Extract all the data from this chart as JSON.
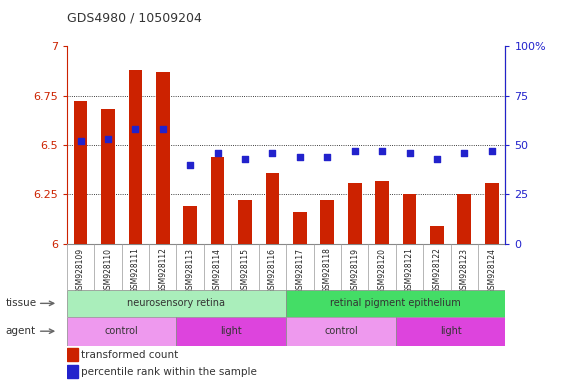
{
  "title": "GDS4980 / 10509204",
  "samples": [
    "GSM928109",
    "GSM928110",
    "GSM928111",
    "GSM928112",
    "GSM928113",
    "GSM928114",
    "GSM928115",
    "GSM928116",
    "GSM928117",
    "GSM928118",
    "GSM928119",
    "GSM928120",
    "GSM928121",
    "GSM928122",
    "GSM928123",
    "GSM928124"
  ],
  "bar_values": [
    6.72,
    6.68,
    6.88,
    6.87,
    6.19,
    6.44,
    6.22,
    6.36,
    6.16,
    6.22,
    6.31,
    6.32,
    6.25,
    6.09,
    6.25,
    6.31
  ],
  "dot_values": [
    52,
    53,
    58,
    58,
    40,
    46,
    43,
    46,
    44,
    44,
    47,
    47,
    46,
    43,
    46,
    47
  ],
  "ylim": [
    6.0,
    7.0
  ],
  "y2lim": [
    0,
    100
  ],
  "yticks": [
    6.0,
    6.25,
    6.5,
    6.75,
    7.0
  ],
  "ytick_labels": [
    "6",
    "6.25",
    "6.5",
    "6.75",
    "7"
  ],
  "y2ticks": [
    0,
    25,
    50,
    75,
    100
  ],
  "y2tick_labels": [
    "0",
    "25",
    "50",
    "75",
    "100%"
  ],
  "bar_color": "#cc2200",
  "dot_color": "#2222cc",
  "grid_color": "#000000",
  "tissue_groups": [
    {
      "label": "neurosensory retina",
      "start": 0,
      "end": 8,
      "color": "#aaeebb"
    },
    {
      "label": "retinal pigment epithelium",
      "start": 8,
      "end": 16,
      "color": "#44dd66"
    }
  ],
  "agent_groups": [
    {
      "label": "control",
      "start": 0,
      "end": 4,
      "color": "#ee99ee"
    },
    {
      "label": "light",
      "start": 4,
      "end": 8,
      "color": "#dd44dd"
    },
    {
      "label": "control",
      "start": 8,
      "end": 12,
      "color": "#ee99ee"
    },
    {
      "label": "light",
      "start": 12,
      "end": 16,
      "color": "#dd44dd"
    }
  ],
  "legend_items": [
    {
      "label": "transformed count",
      "color": "#cc2200"
    },
    {
      "label": "percentile rank within the sample",
      "color": "#2222cc"
    }
  ],
  "xtick_bg_color": "#cccccc",
  "border_color": "#888888",
  "left_label_color": "#555555"
}
